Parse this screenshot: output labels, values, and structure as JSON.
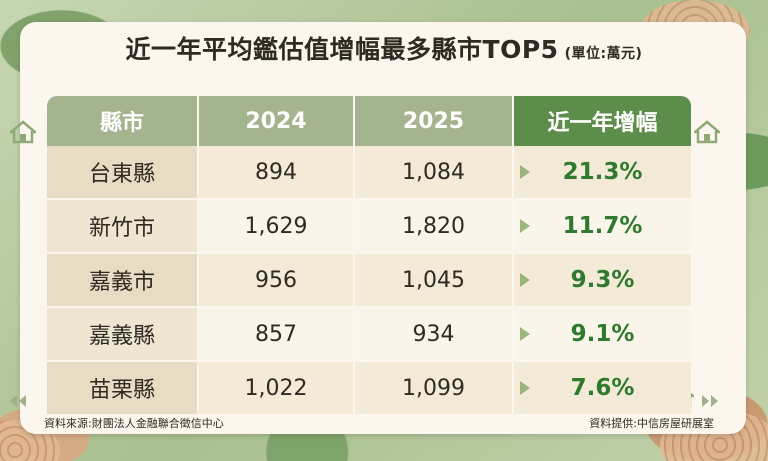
{
  "title": "近一年平均鑑估值增幅最多縣市TOP5",
  "unit": "(單位:萬元)",
  "table": {
    "headers": [
      "縣市",
      "2024",
      "2025",
      "近一年增幅"
    ],
    "rows": [
      {
        "name": "台東縣",
        "y2024": "894",
        "y2025": "1,084",
        "growth": "21.3%"
      },
      {
        "name": "新竹市",
        "y2024": "1,629",
        "y2025": "1,820",
        "growth": "11.7%"
      },
      {
        "name": "嘉義市",
        "y2024": "956",
        "y2025": "1,045",
        "growth": "9.3%"
      },
      {
        "name": "嘉義縣",
        "y2024": "857",
        "y2025": "934",
        "growth": "9.1%"
      },
      {
        "name": "苗栗縣",
        "y2024": "1,022",
        "y2025": "1,099",
        "growth": "7.6%"
      }
    ]
  },
  "footer": {
    "source": "資料來源:財團法人金融聯合徵信中心",
    "provider": "資料提供:中信房屋研展室"
  },
  "colors": {
    "header": "#a4b48f",
    "header_accent": "#5d8d4a",
    "growth_text": "#2f7a2e"
  },
  "icons": [
    "house-icon",
    "arrow-left-icon",
    "arrow-right-icon",
    "row-arrow-icon"
  ]
}
